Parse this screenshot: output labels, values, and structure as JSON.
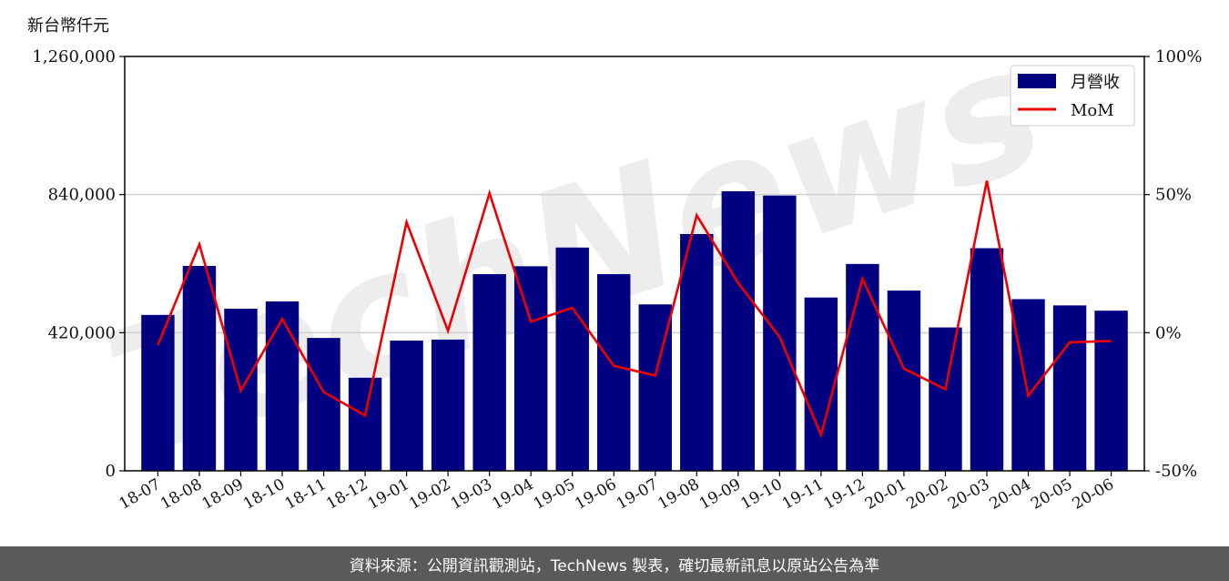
{
  "chart_data": {
    "type": "bar",
    "ylabel": "新台幣仟元",
    "categories": [
      "18-07",
      "18-08",
      "18-09",
      "18-10",
      "18-11",
      "18-12",
      "19-01",
      "19-02",
      "19-03",
      "19-04",
      "19-05",
      "19-06",
      "19-07",
      "19-08",
      "19-09",
      "19-10",
      "19-11",
      "19-12",
      "20-01",
      "20-02",
      "20-03",
      "20-04",
      "20-05",
      "20-06"
    ],
    "series": [
      {
        "name": "月營收",
        "type": "bar",
        "axis": "left",
        "color": "#000080",
        "values": [
          474000,
          623000,
          493000,
          515000,
          404000,
          283000,
          396000,
          399000,
          598000,
          622000,
          679000,
          598000,
          506000,
          720000,
          850000,
          837000,
          527000,
          629000,
          548000,
          436000,
          677000,
          522000,
          503000,
          487000
        ]
      },
      {
        "name": "MoM",
        "type": "line",
        "axis": "right",
        "color": "#ee0000",
        "values": [
          -4.5,
          32,
          -21,
          5,
          -21.5,
          -30,
          40,
          0.7,
          50.5,
          4,
          9,
          -12,
          -15.5,
          42.5,
          18,
          -1.5,
          -37,
          19.5,
          -13,
          -20.5,
          55,
          -22.8,
          -3.5,
          -3
        ]
      }
    ],
    "ylim": [
      0,
      1260000
    ],
    "yticks": [
      "0",
      "420,000",
      "840,000",
      "1,260,000"
    ],
    "y2lim": [
      -50,
      100
    ],
    "y2ticks": [
      "-50%",
      "0%",
      "50%",
      "100%"
    ],
    "grid": "horizontal",
    "legend": "top-right",
    "watermark": "TechNews"
  },
  "footer": {
    "source_text": "資料來源：公開資訊觀測站，TechNews 製表，確切最新訊息以原站公告為準"
  }
}
